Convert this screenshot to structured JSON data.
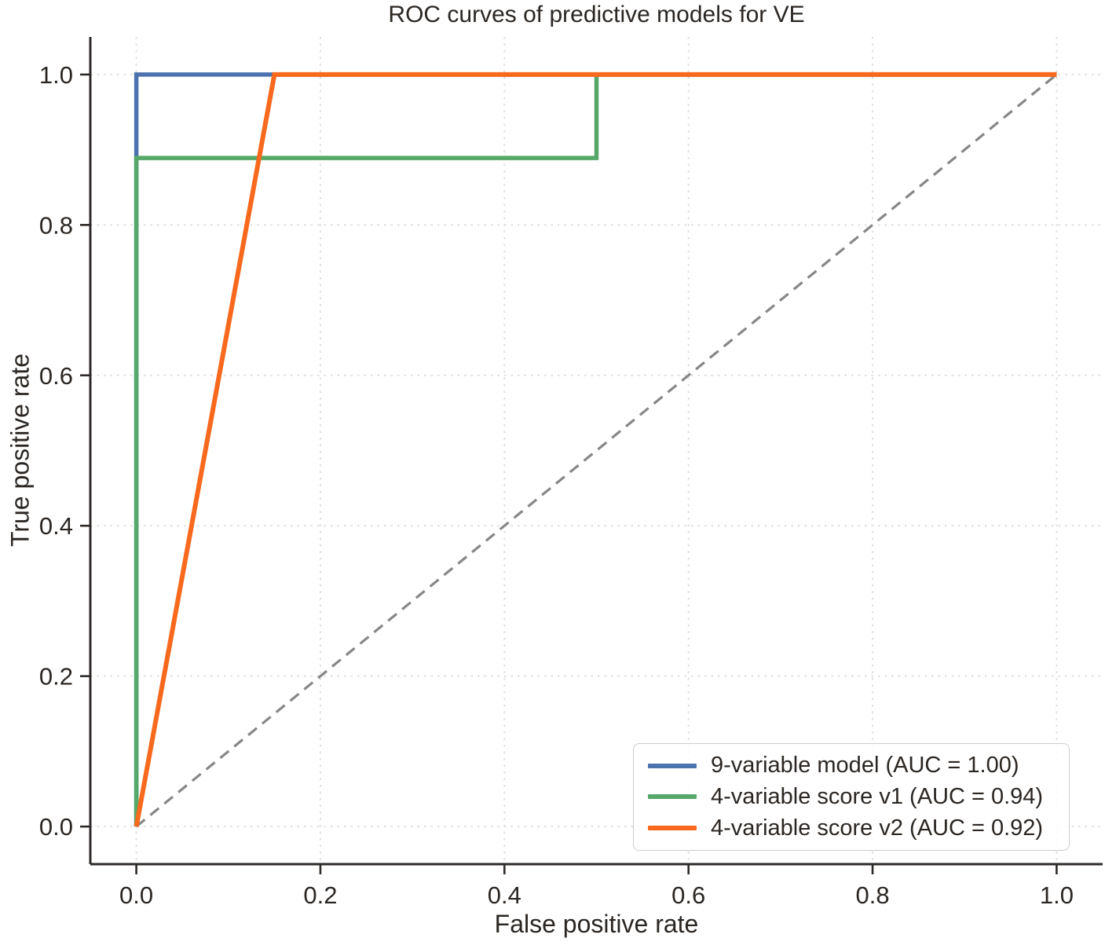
{
  "figure": {
    "title": "ROC curves of predictive models for VE",
    "xlabel": "False positive rate",
    "ylabel": "True positive rate"
  },
  "chart_data": {
    "type": "line",
    "subtype": "roc-curves",
    "title": "ROC curves of predictive models for VE",
    "xlabel": "False positive rate",
    "ylabel": "True positive rate",
    "xlim": [
      -0.05,
      1.05
    ],
    "ylim": [
      -0.05,
      1.05
    ],
    "xticks": [
      0.0,
      0.2,
      0.4,
      0.6,
      0.8,
      1.0
    ],
    "yticks": [
      0.0,
      0.2,
      0.4,
      0.6,
      0.8,
      1.0
    ],
    "xtick_labels": [
      "0.0",
      "0.2",
      "0.4",
      "0.6",
      "0.8",
      "1.0"
    ],
    "ytick_labels": [
      "0.0",
      "0.2",
      "0.4",
      "0.6",
      "0.8",
      "1.0"
    ],
    "grid": "dotted, light gray, at every tick",
    "legend_position": "lower right",
    "reference_line": {
      "name": "chance diagonal",
      "style": "dashed",
      "color": "#878787",
      "x": [
        0,
        1
      ],
      "y": [
        0,
        1
      ]
    },
    "series": [
      {
        "name": "9-variable model (AUC = 1.00)",
        "model": "9-variable model",
        "auc": 1.0,
        "color": "#4C72B0",
        "fpr": [
          0,
          0,
          1
        ],
        "tpr": [
          0,
          1,
          1
        ]
      },
      {
        "name": "4-variable score v1 (AUC = 0.94)",
        "model": "4-variable score v1",
        "auc": 0.94,
        "color": "#55A868",
        "fpr": [
          0,
          0,
          0.5,
          0.5,
          1
        ],
        "tpr": [
          0,
          0.889,
          0.889,
          1,
          1
        ]
      },
      {
        "name": "4-variable score v2 (AUC = 0.92)",
        "model": "4-variable score v2",
        "auc": 0.92,
        "color": "#F8691E",
        "fpr": [
          0,
          0.15,
          1
        ],
        "tpr": [
          0,
          1,
          1
        ]
      }
    ]
  }
}
